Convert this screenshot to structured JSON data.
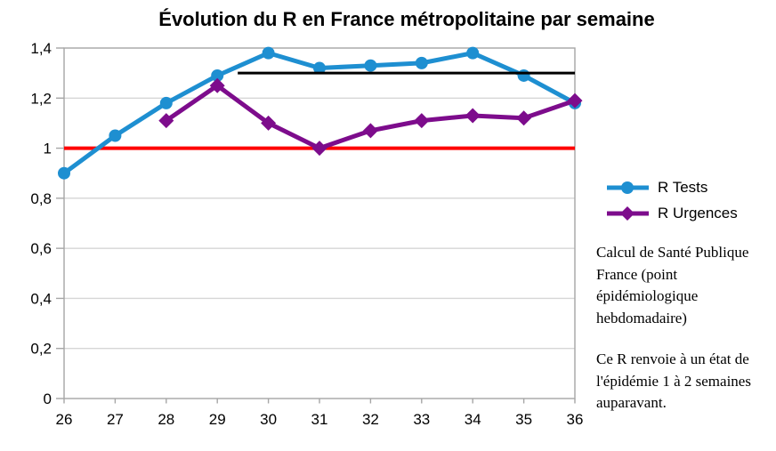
{
  "chart_data": {
    "type": "line",
    "title": "Évolution du R en France métropolitaine par semaine",
    "xlabel": "",
    "ylabel": "",
    "xlim": [
      26,
      36
    ],
    "ylim": [
      0,
      1.4
    ],
    "grid": "horizontal",
    "legend_position": "right",
    "x": [
      26,
      27,
      28,
      29,
      30,
      31,
      32,
      33,
      34,
      35,
      36
    ],
    "x_tick_labels": [
      "26",
      "27",
      "28",
      "29",
      "30",
      "31",
      "32",
      "33",
      "34",
      "35",
      "36"
    ],
    "y_ticks": [
      0,
      0.2,
      0.4,
      0.6,
      0.8,
      1,
      1.2,
      1.4
    ],
    "y_tick_labels": [
      "0",
      "0,2",
      "0,4",
      "0,6",
      "0,8",
      "1",
      "1,2",
      "1,4"
    ],
    "series": [
      {
        "name": "R Tests",
        "color": "#1E8FD1",
        "marker": "circle",
        "x": [
          26,
          27,
          28,
          29,
          30,
          31,
          32,
          33,
          34,
          35,
          36
        ],
        "values": [
          0.9,
          1.05,
          1.18,
          1.29,
          1.38,
          1.32,
          1.33,
          1.34,
          1.38,
          1.29,
          1.18
        ]
      },
      {
        "name": "R Urgences",
        "color": "#7D0C8C",
        "marker": "diamond",
        "x": [
          28,
          29,
          30,
          31,
          32,
          33,
          34,
          35,
          36
        ],
        "values": [
          1.11,
          1.25,
          1.1,
          1.0,
          1.07,
          1.11,
          1.13,
          1.12,
          1.19
        ]
      }
    ],
    "reference_lines": [
      {
        "name": "threshold-R-equals-1",
        "value": 1.0,
        "color": "#FF0000",
        "from_x": 26,
        "to_x": 36,
        "width": 4
      },
      {
        "name": "level-1-30",
        "value": 1.3,
        "color": "#000000",
        "from_x": 29.4,
        "to_x": 36,
        "width": 3
      }
    ]
  },
  "annotation": {
    "para1": "Calcul de Santé Publique\nFrance (point\népidémiologique\nhebdomadaire)",
    "para2": "Ce R renvoie à un état de\nl'épidémie 1 à 2 semaines\nauparavant."
  },
  "colors": {
    "background": "#FFFFFF",
    "grid": "#D6D6D6",
    "axis": "#A6A6A6",
    "text": "#000000"
  }
}
